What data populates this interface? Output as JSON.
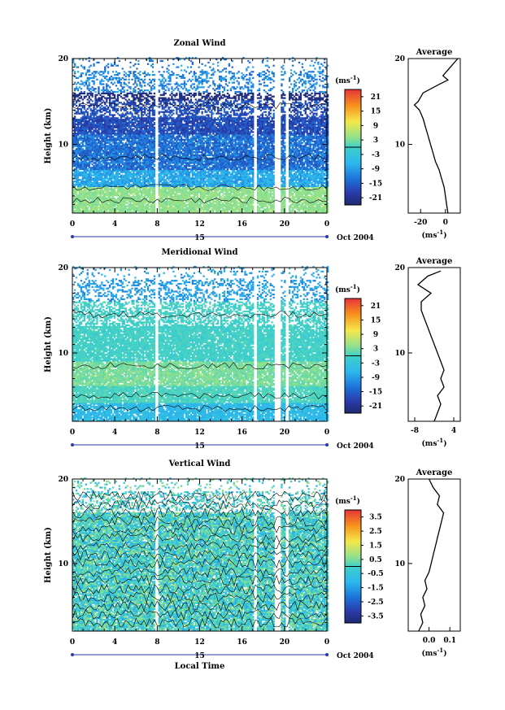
{
  "chart_data": [
    {
      "type": "heatmap",
      "title": "Zonal Wind",
      "ylabel": "Height (km)",
      "xlabel": "",
      "x_ticks": [
        "0",
        "4",
        "8",
        "12",
        "16",
        "20",
        "0"
      ],
      "y_ticks": [
        "20",
        "10"
      ],
      "xlim": [
        0,
        24
      ],
      "ylim": [
        2,
        20
      ],
      "date_center": "15",
      "date_label": "Oct 2004",
      "colorbar": {
        "unit_base": "(ms",
        "unit_exp": "-1",
        "unit_close": ")",
        "ticks": [
          "21",
          "15",
          "9",
          "3",
          "-3",
          "-9",
          "-15",
          "-21"
        ],
        "range": [
          -24,
          24
        ]
      },
      "gaps_hours": [
        [
          7.7,
          8.1
        ],
        [
          17.1,
          17.4
        ],
        [
          19.0,
          19.5
        ],
        [
          20.0,
          20.3
        ]
      ],
      "profile": {
        "title": "Average",
        "x_ticks": [
          "-20",
          "0"
        ],
        "xlim": [
          -30,
          12
        ],
        "x_tick_values": [
          -20,
          0
        ],
        "height": [
          2,
          3,
          4,
          5,
          6,
          7,
          8,
          9,
          10,
          11,
          12,
          13,
          14,
          14.6,
          15,
          16,
          17,
          17.5,
          18,
          19,
          20
        ],
        "value": [
          2,
          1,
          0,
          -1,
          -3,
          -5,
          -8,
          -10,
          -12,
          -14,
          -16,
          -18,
          -21,
          -25,
          -22,
          -18,
          -5,
          2,
          -2,
          4,
          10
        ]
      }
    },
    {
      "type": "heatmap",
      "title": "Meridional Wind",
      "ylabel": "Height (km)",
      "xlabel": "",
      "x_ticks": [
        "0",
        "4",
        "8",
        "12",
        "16",
        "20",
        "0"
      ],
      "y_ticks": [
        "20",
        "10"
      ],
      "xlim": [
        0,
        24
      ],
      "ylim": [
        2,
        20
      ],
      "date_center": "15",
      "date_label": "Oct 2004",
      "colorbar": {
        "unit_base": "(ms",
        "unit_exp": "-1",
        "unit_close": ")",
        "ticks": [
          "21",
          "15",
          "9",
          "3",
          "-3",
          "-9",
          "-15",
          "-21"
        ],
        "range": [
          -24,
          24
        ]
      },
      "gaps_hours": [
        [
          7.7,
          8.1
        ],
        [
          17.1,
          17.4
        ],
        [
          19.0,
          19.5
        ],
        [
          20.0,
          20.3
        ]
      ],
      "profile": {
        "title": "Average",
        "x_ticks": [
          "-8",
          "4"
        ],
        "xlim": [
          -10,
          6
        ],
        "x_tick_values": [
          -8,
          4
        ],
        "height": [
          2,
          3,
          4,
          5,
          6,
          7,
          8,
          9,
          10,
          11,
          12,
          13,
          14,
          15,
          16,
          17,
          18,
          19,
          19.6
        ],
        "value": [
          -2,
          -1,
          0,
          -1,
          1,
          0,
          1,
          0,
          -1,
          -2,
          -3,
          -4,
          -5,
          -6,
          -6,
          -3,
          -7,
          -4,
          0
        ]
      }
    },
    {
      "type": "heatmap",
      "title": "Vertical Wind",
      "ylabel": "Height (km)",
      "xlabel": "Local Time",
      "x_ticks": [
        "0",
        "4",
        "8",
        "12",
        "16",
        "20",
        "0"
      ],
      "y_ticks": [
        "20",
        "10"
      ],
      "xlim": [
        0,
        24
      ],
      "ylim": [
        2,
        20
      ],
      "date_center": "15",
      "date_label": "Oct 2004",
      "colorbar": {
        "unit_base": "(ms",
        "unit_exp": "-1",
        "unit_close": ")",
        "ticks": [
          "3.5",
          "2.5",
          "1.5",
          "0.5",
          "-0.5",
          "-1.5",
          "-2.5",
          "-3.5"
        ],
        "range": [
          -4,
          4
        ]
      },
      "gaps_hours": [
        [
          7.7,
          8.1
        ],
        [
          17.1,
          17.4
        ],
        [
          19.0,
          19.5
        ],
        [
          20.0,
          20.3
        ]
      ],
      "profile": {
        "title": "Average",
        "x_ticks": [
          "0.0",
          "0.1"
        ],
        "xlim": [
          -0.1,
          0.15
        ],
        "x_tick_values": [
          0.0,
          0.1
        ],
        "height": [
          2,
          3,
          4,
          5,
          6,
          7,
          8,
          9,
          10,
          11,
          12,
          13,
          14,
          15,
          16,
          17,
          18,
          19,
          20
        ],
        "value": [
          -0.05,
          -0.03,
          -0.04,
          -0.02,
          -0.03,
          -0.01,
          -0.02,
          0.0,
          0.01,
          0.02,
          0.03,
          0.04,
          0.05,
          0.06,
          0.07,
          0.04,
          0.05,
          0.02,
          0.0
        ]
      }
    }
  ]
}
